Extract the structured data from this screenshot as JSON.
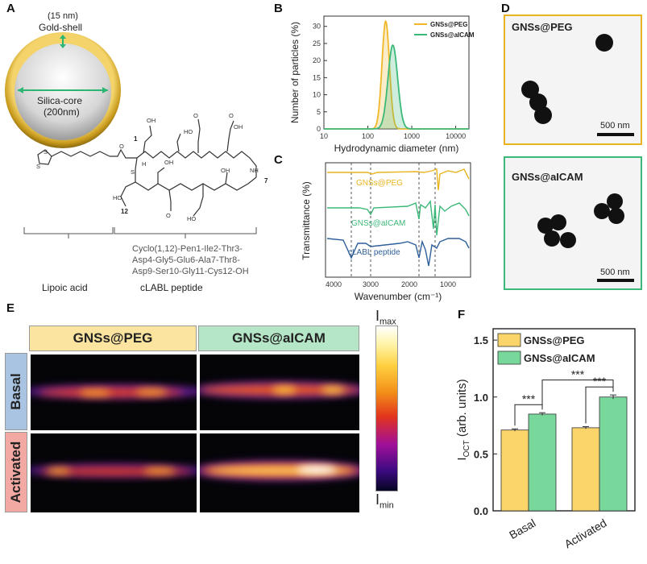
{
  "panels": {
    "a": "A",
    "b": "B",
    "c": "C",
    "d": "D",
    "e": "E",
    "f": "F"
  },
  "panelA": {
    "shell_thickness": "(15 nm)",
    "shell_label": "Gold-shell",
    "core_label": "Silica-core",
    "core_size": "(200nm)",
    "residue_1": "1",
    "residue_7": "7",
    "residue_12": "12",
    "sequence_line1": "Cyclo(1,12)-Pen1-Ile2-Thr3-",
    "sequence_line2": "Asp4-Gly5-Glu6-Ala7-Thr8-",
    "sequence_line3": "Asp9-Ser10-Gly11-Cys12-OH",
    "lipoic_label": "Lipoic acid",
    "peptide_label": "cLABL peptide"
  },
  "panelC": {
    "ylabel": "Transmittance (%)",
    "xlabel": "Wavenumber (cm⁻¹)",
    "xticks": [
      "4000",
      "3000",
      "2000",
      "1000"
    ],
    "trace1": "GNSs@PEG",
    "trace2": "GNSs@aICAM",
    "trace3": "cLABL peptide",
    "colors": {
      "peg": "#e8b420",
      "aicam": "#3cb878",
      "peptide": "#2f5f9a"
    }
  },
  "panelD": {
    "top_label": "GNSs@PEG",
    "bottom_label": "GNSs@aICAM",
    "scale_top": "500 nm",
    "scale_bottom": "500 nm",
    "border_top": "#e8b420",
    "border_bottom": "#3cb878"
  },
  "panelE": {
    "col1": "GNSs@PEG",
    "col2": "GNSs@aICAM",
    "row1": "Basal",
    "row2": "Activated",
    "scale_max": "max",
    "scale_min": "min",
    "scale_symbol": "I"
  },
  "chart_data": [
    {
      "type": "line",
      "panel": "B",
      "title": "",
      "xlabel": "Hydrodynamic diameter (nm)",
      "ylabel": "Number of particles (%)",
      "xscale": "log",
      "xlim": [
        10,
        20000
      ],
      "ylim": [
        0,
        33
      ],
      "xticks": [
        "10",
        "100",
        "1000",
        "10000"
      ],
      "yticks": [
        "0",
        "5",
        "10",
        "15",
        "20",
        "25",
        "30"
      ],
      "legend_position": "top-right",
      "series": [
        {
          "name": "GNSs@PEG",
          "color": "#f0b828",
          "peak_x": 255,
          "peak_y": 31.5,
          "log_sigma": 0.085
        },
        {
          "name": "GNSs@aICAM",
          "color": "#3cb878",
          "peak_x": 370,
          "peak_y": 24.5,
          "log_sigma": 0.11
        }
      ]
    },
    {
      "type": "bar",
      "panel": "F",
      "title": "",
      "xlabel": "",
      "ylabel": "I",
      "ylabel_sub": "OCT",
      "ylabel_rest": "(arb. units)",
      "categories": [
        "Basal",
        "Activated"
      ],
      "ylim": [
        0,
        1.6
      ],
      "yticks": [
        "0.0",
        "0.5",
        "1.0",
        "1.5"
      ],
      "legend_position": "top-left",
      "series": [
        {
          "name": "GNSs@PEG",
          "color": "#fbd46a",
          "values": [
            0.71,
            0.73
          ],
          "errors": [
            0.01,
            0.01
          ]
        },
        {
          "name": "GNSs@aICAM",
          "color": "#78d89c",
          "values": [
            0.85,
            1.0
          ],
          "errors": [
            0.012,
            0.018
          ]
        }
      ],
      "annotations": [
        "***",
        "***",
        "***"
      ]
    }
  ]
}
